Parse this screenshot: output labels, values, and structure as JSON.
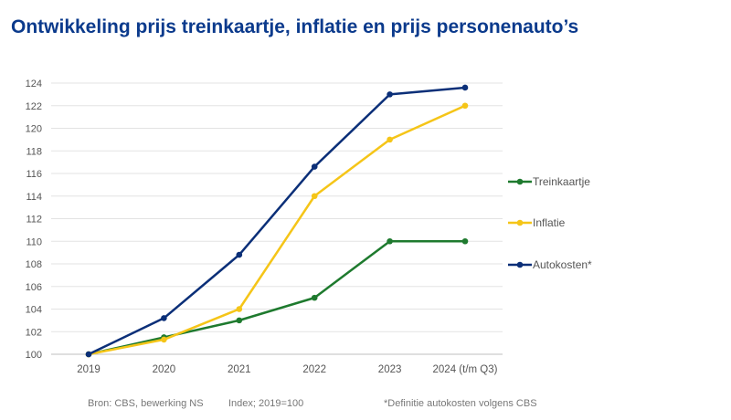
{
  "title": "Ontwikkeling prijs treinkaartje, inflatie en prijs personenauto’s",
  "footer": {
    "source": "Bron: CBS, bewerking NS",
    "index": "Index; 2019=100",
    "note": "*Definitie autokosten volgens CBS"
  },
  "chart_data": {
    "type": "line",
    "title": "Ontwikkeling prijs treinkaartje, inflatie en prijs personenauto’s",
    "categories": [
      "2019",
      "2020",
      "2021",
      "2022",
      "2023",
      "2024 (t/m Q3)"
    ],
    "series": [
      {
        "name": "Treinkaartje",
        "color": "#1e7a2e",
        "values": [
          100,
          101.5,
          103,
          105,
          110,
          110
        ]
      },
      {
        "name": "Inflatie",
        "color": "#f5c518",
        "values": [
          100,
          101.3,
          104,
          114,
          119,
          122
        ]
      },
      {
        "name": "Autokosten*",
        "color": "#0b2f78",
        "values": [
          100,
          103.2,
          108.8,
          116.6,
          123,
          123.6
        ]
      }
    ],
    "ylim": [
      100,
      124
    ],
    "yticks": [
      100,
      102,
      104,
      106,
      108,
      110,
      112,
      114,
      116,
      118,
      120,
      122,
      124
    ],
    "grid": true,
    "legend_position": "right"
  }
}
